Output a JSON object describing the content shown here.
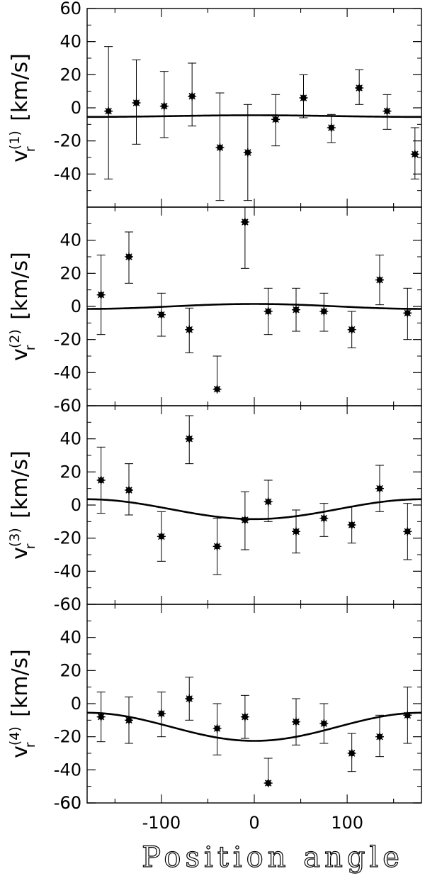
{
  "chart_data": {
    "type": "scatter",
    "xlabel": "Position angle",
    "xlim": [
      -180,
      180
    ],
    "xticks": [
      -100,
      0,
      100
    ],
    "xtick_labels": [
      "-100",
      "0",
      "100"
    ],
    "shared_x": true,
    "grid": false,
    "panels": [
      {
        "name": "v_r(1)",
        "ylabel": "v",
        "ylabel_sub": "r",
        "ylabel_sup": "(1)",
        "ylabel_unit": "[km/s]",
        "ylim": [
          -60,
          60
        ],
        "yticks": [
          60,
          40,
          20,
          0,
          -20,
          -40
        ],
        "ytick_labels": [
          "60",
          "40",
          "20",
          "0",
          "-20",
          "-40"
        ],
        "points": [
          {
            "x": -157,
            "y": -2,
            "yerr_low": 41,
            "yerr_high": 39
          },
          {
            "x": -127,
            "y": 3,
            "yerr_low": 25,
            "yerr_high": 26
          },
          {
            "x": -97,
            "y": 1,
            "yerr_low": 19,
            "yerr_high": 21
          },
          {
            "x": -67,
            "y": 7,
            "yerr_low": 18,
            "yerr_high": 20
          },
          {
            "x": -37,
            "y": -24,
            "yerr_low": 32,
            "yerr_high": 33
          },
          {
            "x": -7,
            "y": -27,
            "yerr_low": 29,
            "yerr_high": 29
          },
          {
            "x": 23,
            "y": -7,
            "yerr_low": 16,
            "yerr_high": 15
          },
          {
            "x": 53,
            "y": 6,
            "yerr_low": 12,
            "yerr_high": 14
          },
          {
            "x": 83,
            "y": -12,
            "yerr_low": 9,
            "yerr_high": 8
          },
          {
            "x": 113,
            "y": 12,
            "yerr_low": 10,
            "yerr_high": 11
          },
          {
            "x": 143,
            "y": -2,
            "yerr_low": 11,
            "yerr_high": 10
          },
          {
            "x": 173,
            "y": -28,
            "yerr_low": 15,
            "yerr_high": 16
          }
        ],
        "curve": {
          "type": "sinusoid",
          "offset": -5,
          "amplitude": 0.5,
          "phase_deg": 90
        }
      },
      {
        "name": "v_r(2)",
        "ylabel": "v",
        "ylabel_sub": "r",
        "ylabel_sup": "(2)",
        "ylabel_unit": "[km/s]",
        "ylim": [
          -60,
          60
        ],
        "yticks": [
          -60,
          40,
          20,
          0,
          -20,
          -40
        ],
        "ytick_labels": [
          "-60",
          "40",
          "20",
          "0",
          "-20",
          "-40"
        ],
        "points": [
          {
            "x": -165,
            "y": 7,
            "yerr_low": 24,
            "yerr_high": 24
          },
          {
            "x": -135,
            "y": 30,
            "yerr_low": 16,
            "yerr_high": 15
          },
          {
            "x": -100,
            "y": -5,
            "yerr_low": 13,
            "yerr_high": 13
          },
          {
            "x": -70,
            "y": -14,
            "yerr_low": 14,
            "yerr_high": 13
          },
          {
            "x": -40,
            "y": -50,
            "yerr_low": 0,
            "yerr_high": 20
          },
          {
            "x": -10,
            "y": 51,
            "yerr_low": 28,
            "yerr_high": 9
          },
          {
            "x": 15,
            "y": -3,
            "yerr_low": 14,
            "yerr_high": 14
          },
          {
            "x": 45,
            "y": -2,
            "yerr_low": 13,
            "yerr_high": 13
          },
          {
            "x": 75,
            "y": -3,
            "yerr_low": 12,
            "yerr_high": 11
          },
          {
            "x": 105,
            "y": -14,
            "yerr_low": 11,
            "yerr_high": 11
          },
          {
            "x": 135,
            "y": 16,
            "yerr_low": 15,
            "yerr_high": 15
          },
          {
            "x": 165,
            "y": -4,
            "yerr_low": 16,
            "yerr_high": 15
          }
        ],
        "curve": {
          "type": "sinusoid",
          "offset": 0,
          "amplitude": 1.5,
          "phase_deg": 90
        }
      },
      {
        "name": "v_r(3)",
        "ylabel": "v",
        "ylabel_sub": "r",
        "ylabel_sup": "(3)",
        "ylabel_unit": "[km/s]",
        "ylim": [
          -60,
          60
        ],
        "yticks": [
          -60,
          40,
          20,
          0,
          -20,
          -40
        ],
        "ytick_labels": [
          "-60",
          "40",
          "20",
          "0",
          "-20",
          "-40"
        ],
        "points": [
          {
            "x": -165,
            "y": 15,
            "yerr_low": 20,
            "yerr_high": 20
          },
          {
            "x": -135,
            "y": 9,
            "yerr_low": 15,
            "yerr_high": 16
          },
          {
            "x": -100,
            "y": -19,
            "yerr_low": 15,
            "yerr_high": 15
          },
          {
            "x": -70,
            "y": 40,
            "yerr_low": 15,
            "yerr_high": 14
          },
          {
            "x": -40,
            "y": -25,
            "yerr_low": 17,
            "yerr_high": 17
          },
          {
            "x": -10,
            "y": -9,
            "yerr_low": 18,
            "yerr_high": 17
          },
          {
            "x": 15,
            "y": 2,
            "yerr_low": 12,
            "yerr_high": 13
          },
          {
            "x": 45,
            "y": -16,
            "yerr_low": 13,
            "yerr_high": 13
          },
          {
            "x": 75,
            "y": -8,
            "yerr_low": 11,
            "yerr_high": 9
          },
          {
            "x": 105,
            "y": -12,
            "yerr_low": 11,
            "yerr_high": 11
          },
          {
            "x": 135,
            "y": 10,
            "yerr_low": 14,
            "yerr_high": 14
          },
          {
            "x": 165,
            "y": -16,
            "yerr_low": 17,
            "yerr_high": 17
          }
        ],
        "curve": {
          "type": "sinusoid",
          "offset": -2.5,
          "amplitude": 6,
          "phase_deg": -90
        }
      },
      {
        "name": "v_r(4)",
        "ylabel": "v",
        "ylabel_sub": "r",
        "ylabel_sup": "(4)",
        "ylabel_unit": "[km/s]",
        "ylim": [
          -60,
          60
        ],
        "yticks": [
          -60,
          40,
          20,
          0,
          -20,
          -40,
          -60
        ],
        "ytick_labels": [
          "-60",
          "40",
          "20",
          "0",
          "-20",
          "-40",
          "-60"
        ],
        "points": [
          {
            "x": -165,
            "y": -8,
            "yerr_low": 15,
            "yerr_high": 15
          },
          {
            "x": -135,
            "y": -10,
            "yerr_low": 14,
            "yerr_high": 14
          },
          {
            "x": -100,
            "y": -6,
            "yerr_low": 14,
            "yerr_high": 13
          },
          {
            "x": -70,
            "y": 3,
            "yerr_low": 13,
            "yerr_high": 13
          },
          {
            "x": -40,
            "y": -15,
            "yerr_low": 16,
            "yerr_high": 15
          },
          {
            "x": -10,
            "y": -8,
            "yerr_low": 13,
            "yerr_high": 13
          },
          {
            "x": 15,
            "y": -48,
            "yerr_low": 0,
            "yerr_high": 15
          },
          {
            "x": 45,
            "y": -11,
            "yerr_low": 14,
            "yerr_high": 14
          },
          {
            "x": 75,
            "y": -12,
            "yerr_low": 12,
            "yerr_high": 12
          },
          {
            "x": 105,
            "y": -30,
            "yerr_low": 11,
            "yerr_high": 12
          },
          {
            "x": 135,
            "y": -20,
            "yerr_low": 12,
            "yerr_high": 13
          },
          {
            "x": 165,
            "y": -7,
            "yerr_low": 17,
            "yerr_high": 17
          }
        ],
        "curve": {
          "type": "sinusoid",
          "offset": -14,
          "amplitude": 8.5,
          "phase_deg": -90
        }
      }
    ]
  }
}
